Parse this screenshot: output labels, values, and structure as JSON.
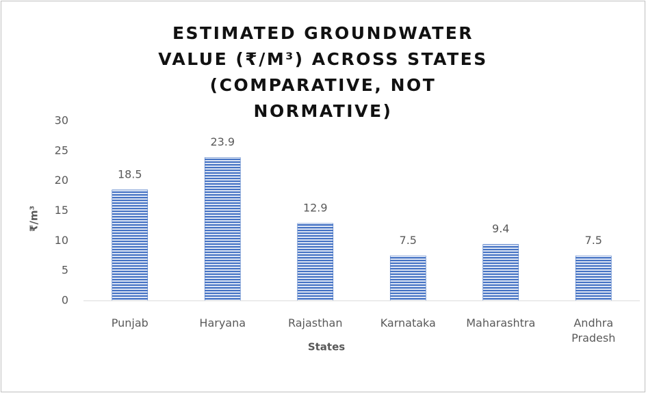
{
  "chart_data": {
    "type": "bar",
    "title": "ESTIMATED GROUNDWATER VALUE (₹/M³) ACROSS STATES (COMPARATIVE, NOT NORMATIVE)",
    "x_label": "States",
    "y_label": "₹/m³",
    "categories": [
      "Punjab",
      "Haryana",
      "Rajasthan",
      "Karnataka",
      "Maharashtra",
      "Andhra Pradesh"
    ],
    "values": [
      18.5,
      23.9,
      12.9,
      7.5,
      9.4,
      7.5
    ],
    "color": "#4472c4",
    "ylim": [
      0,
      30
    ],
    "yticks": [
      0,
      5,
      10,
      15,
      20,
      25,
      30
    ],
    "grid": false
  }
}
